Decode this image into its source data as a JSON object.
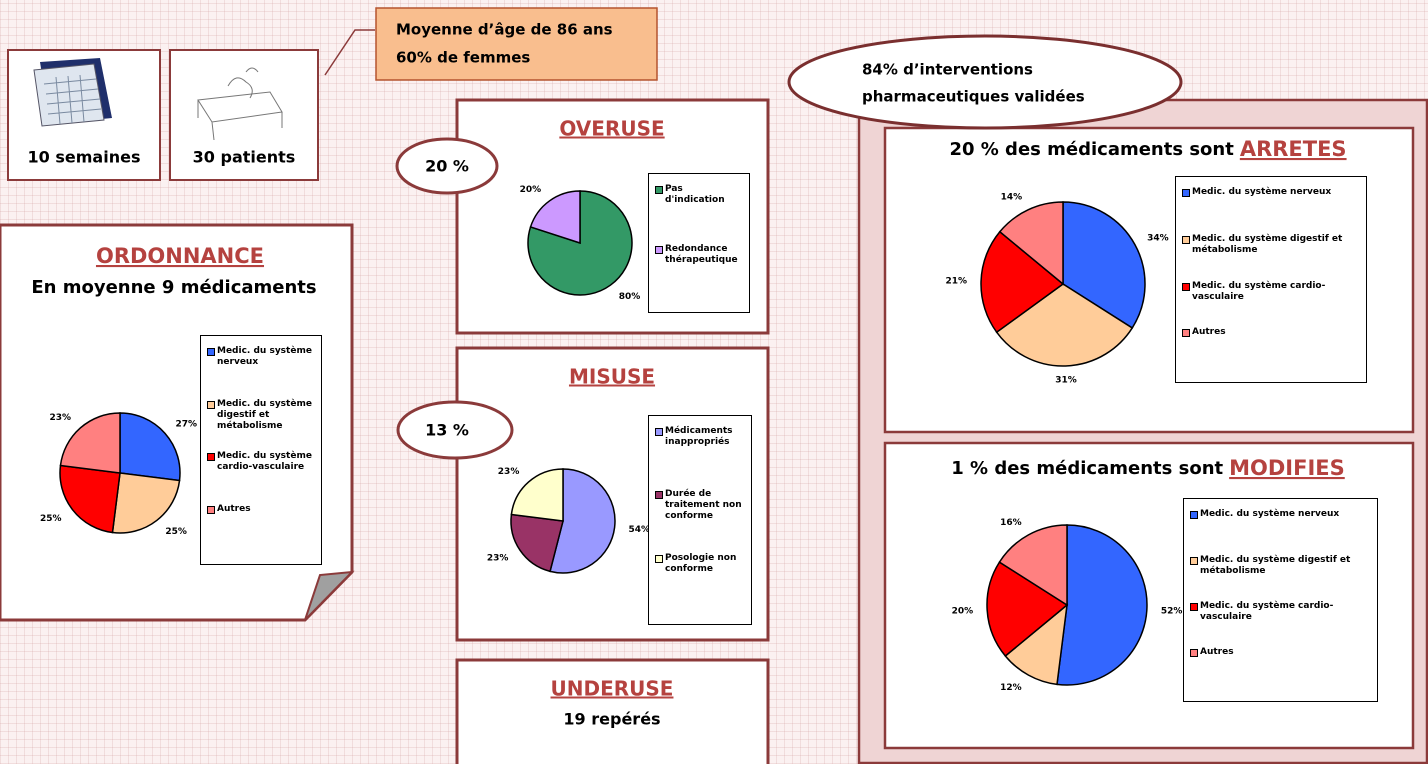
{
  "stats": [
    "10 semaines",
    "30 patients"
  ],
  "profile": [
    "Moyenne d’âge de 86 ans",
    "60% de femmes"
  ],
  "validated": [
    "84% d’interventions",
    "pharmaceutiques validées"
  ],
  "underuse": {
    "title": "UNDERUSE",
    "text": "19 repérés"
  },
  "chart_data": [
    {
      "type": "pie",
      "title": "ORDONNANCE",
      "subtitle": "En moyenne 9 médicaments",
      "categories": [
        "Medic. du système nerveux",
        "Medic. du système digestif et métabolisme",
        "Medic. du système cardio-vasculaire",
        "Autres"
      ],
      "values": [
        27,
        25,
        25,
        23
      ],
      "value_labels": [
        "27%",
        "25%",
        "25%",
        "23%"
      ],
      "colors": [
        "#3366ff",
        "#ffcc99",
        "#ff0000",
        "#ff8080"
      ]
    },
    {
      "type": "pie",
      "title": "OVERUSE",
      "annotation": "20 %",
      "categories": [
        "Pas d'indication",
        "Redondance thérapeutique"
      ],
      "values": [
        80,
        20
      ],
      "value_labels": [
        "80%",
        "20%"
      ],
      "colors": [
        "#339966",
        "#cc99ff"
      ]
    },
    {
      "type": "pie",
      "title": "MISUSE",
      "annotation": "13 %",
      "categories": [
        "Médicaments inappropriés",
        "Durée de traitement non conforme",
        "Posologie non conforme"
      ],
      "values": [
        54,
        23,
        23
      ],
      "value_labels": [
        "54%",
        "23%",
        "23%"
      ],
      "colors": [
        "#9999ff",
        "#993366",
        "#ffffcc"
      ]
    },
    {
      "type": "pie",
      "title": "20 % des médicaments sont",
      "title_emphasis": "ARRETES",
      "categories": [
        "Medic. du système nerveux",
        "Medic. du système digestif et métabolisme",
        "Medic. du système cardio-vasculaire",
        "Autres"
      ],
      "values": [
        34,
        31,
        21,
        14
      ],
      "value_labels": [
        "34%",
        "31%",
        "21%",
        "14%"
      ],
      "colors": [
        "#3366ff",
        "#ffcc99",
        "#ff0000",
        "#ff8080"
      ]
    },
    {
      "type": "pie",
      "title": "1 % des médicaments sont",
      "title_emphasis": "MODIFIES",
      "categories": [
        "Medic. du système nerveux",
        "Medic. du système digestif et métabolisme",
        "Medic. du système cardio-vasculaire",
        "Autres"
      ],
      "values": [
        52,
        12,
        20,
        16
      ],
      "value_labels": [
        "52%",
        "12%",
        "20%",
        "16%"
      ],
      "colors": [
        "#3366ff",
        "#ffcc99",
        "#ff0000",
        "#ff8080"
      ]
    }
  ]
}
